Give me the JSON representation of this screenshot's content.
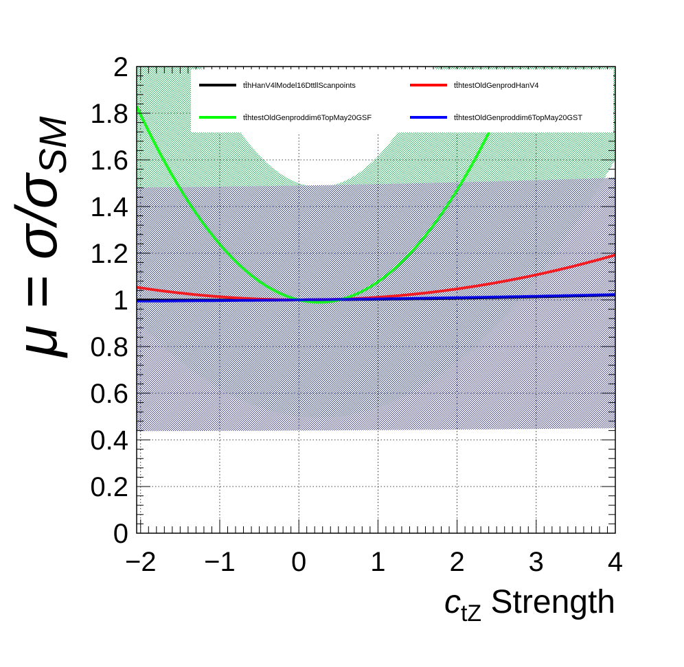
{
  "chart_data": {
    "type": "line",
    "xlabel": {
      "main": "c",
      "sub": "tZ",
      "suffix": " Strength"
    },
    "ylabel": {
      "prefix": "μ = σ/σ",
      "sub": "SM"
    },
    "xlim": [
      -2.05,
      4.0
    ],
    "ylim": [
      0,
      2.0
    ],
    "x_ticks": [
      -2,
      -1,
      0,
      1,
      2,
      3,
      4
    ],
    "x_tick_labels": [
      "−2",
      "−1",
      "0",
      "1",
      "2",
      "3",
      "4"
    ],
    "y_ticks": [
      0,
      0.2,
      0.4,
      0.6,
      0.8,
      1,
      1.2,
      1.4,
      1.6,
      1.8,
      2
    ],
    "y_tick_labels": [
      "0",
      "0.2",
      "0.4",
      "0.6",
      "0.8",
      "1",
      "1.2",
      "1.4",
      "1.6",
      "1.8",
      "2"
    ],
    "grid": true,
    "legend_position": "top",
    "series": [
      {
        "name": "tt̄hHanV4lModel16DttllScanpoints",
        "color": "#000000",
        "a": 0.0008,
        "b": 0.002,
        "c": 1.0,
        "x_range": [
          -2.05,
          4.0
        ],
        "band": null
      },
      {
        "name": "tt̄htestOldGenprodHanV4",
        "color": "#ff0000",
        "a": 0.0123,
        "b": -0.0011,
        "c": 1.0,
        "x_range": [
          -2.05,
          4.0
        ],
        "band": null
      },
      {
        "name": "tt̄htestOldGenproddim6TopMay20GSF",
        "color": "#00ff00",
        "a": 0.158,
        "b": -0.0808,
        "c": 1.0,
        "x_range": [
          -2.05,
          2.62
        ],
        "band": {
          "color": "#00cc44",
          "lo_factor": 0.5,
          "hi_factor": 1.5,
          "y_cap": 2.0
        }
      },
      {
        "name": "tt̄htestOldGenproddim6TopMay20GST",
        "color": "#0000ff",
        "a": 0.0005,
        "b": 0.0037,
        "c": 1.0,
        "x_range": [
          -2.05,
          4.0
        ],
        "band": {
          "color": "#1a1aa0",
          "lo_factor": 0.44,
          "hi_factor": 1.49,
          "y_cap": 2.0
        }
      }
    ]
  }
}
